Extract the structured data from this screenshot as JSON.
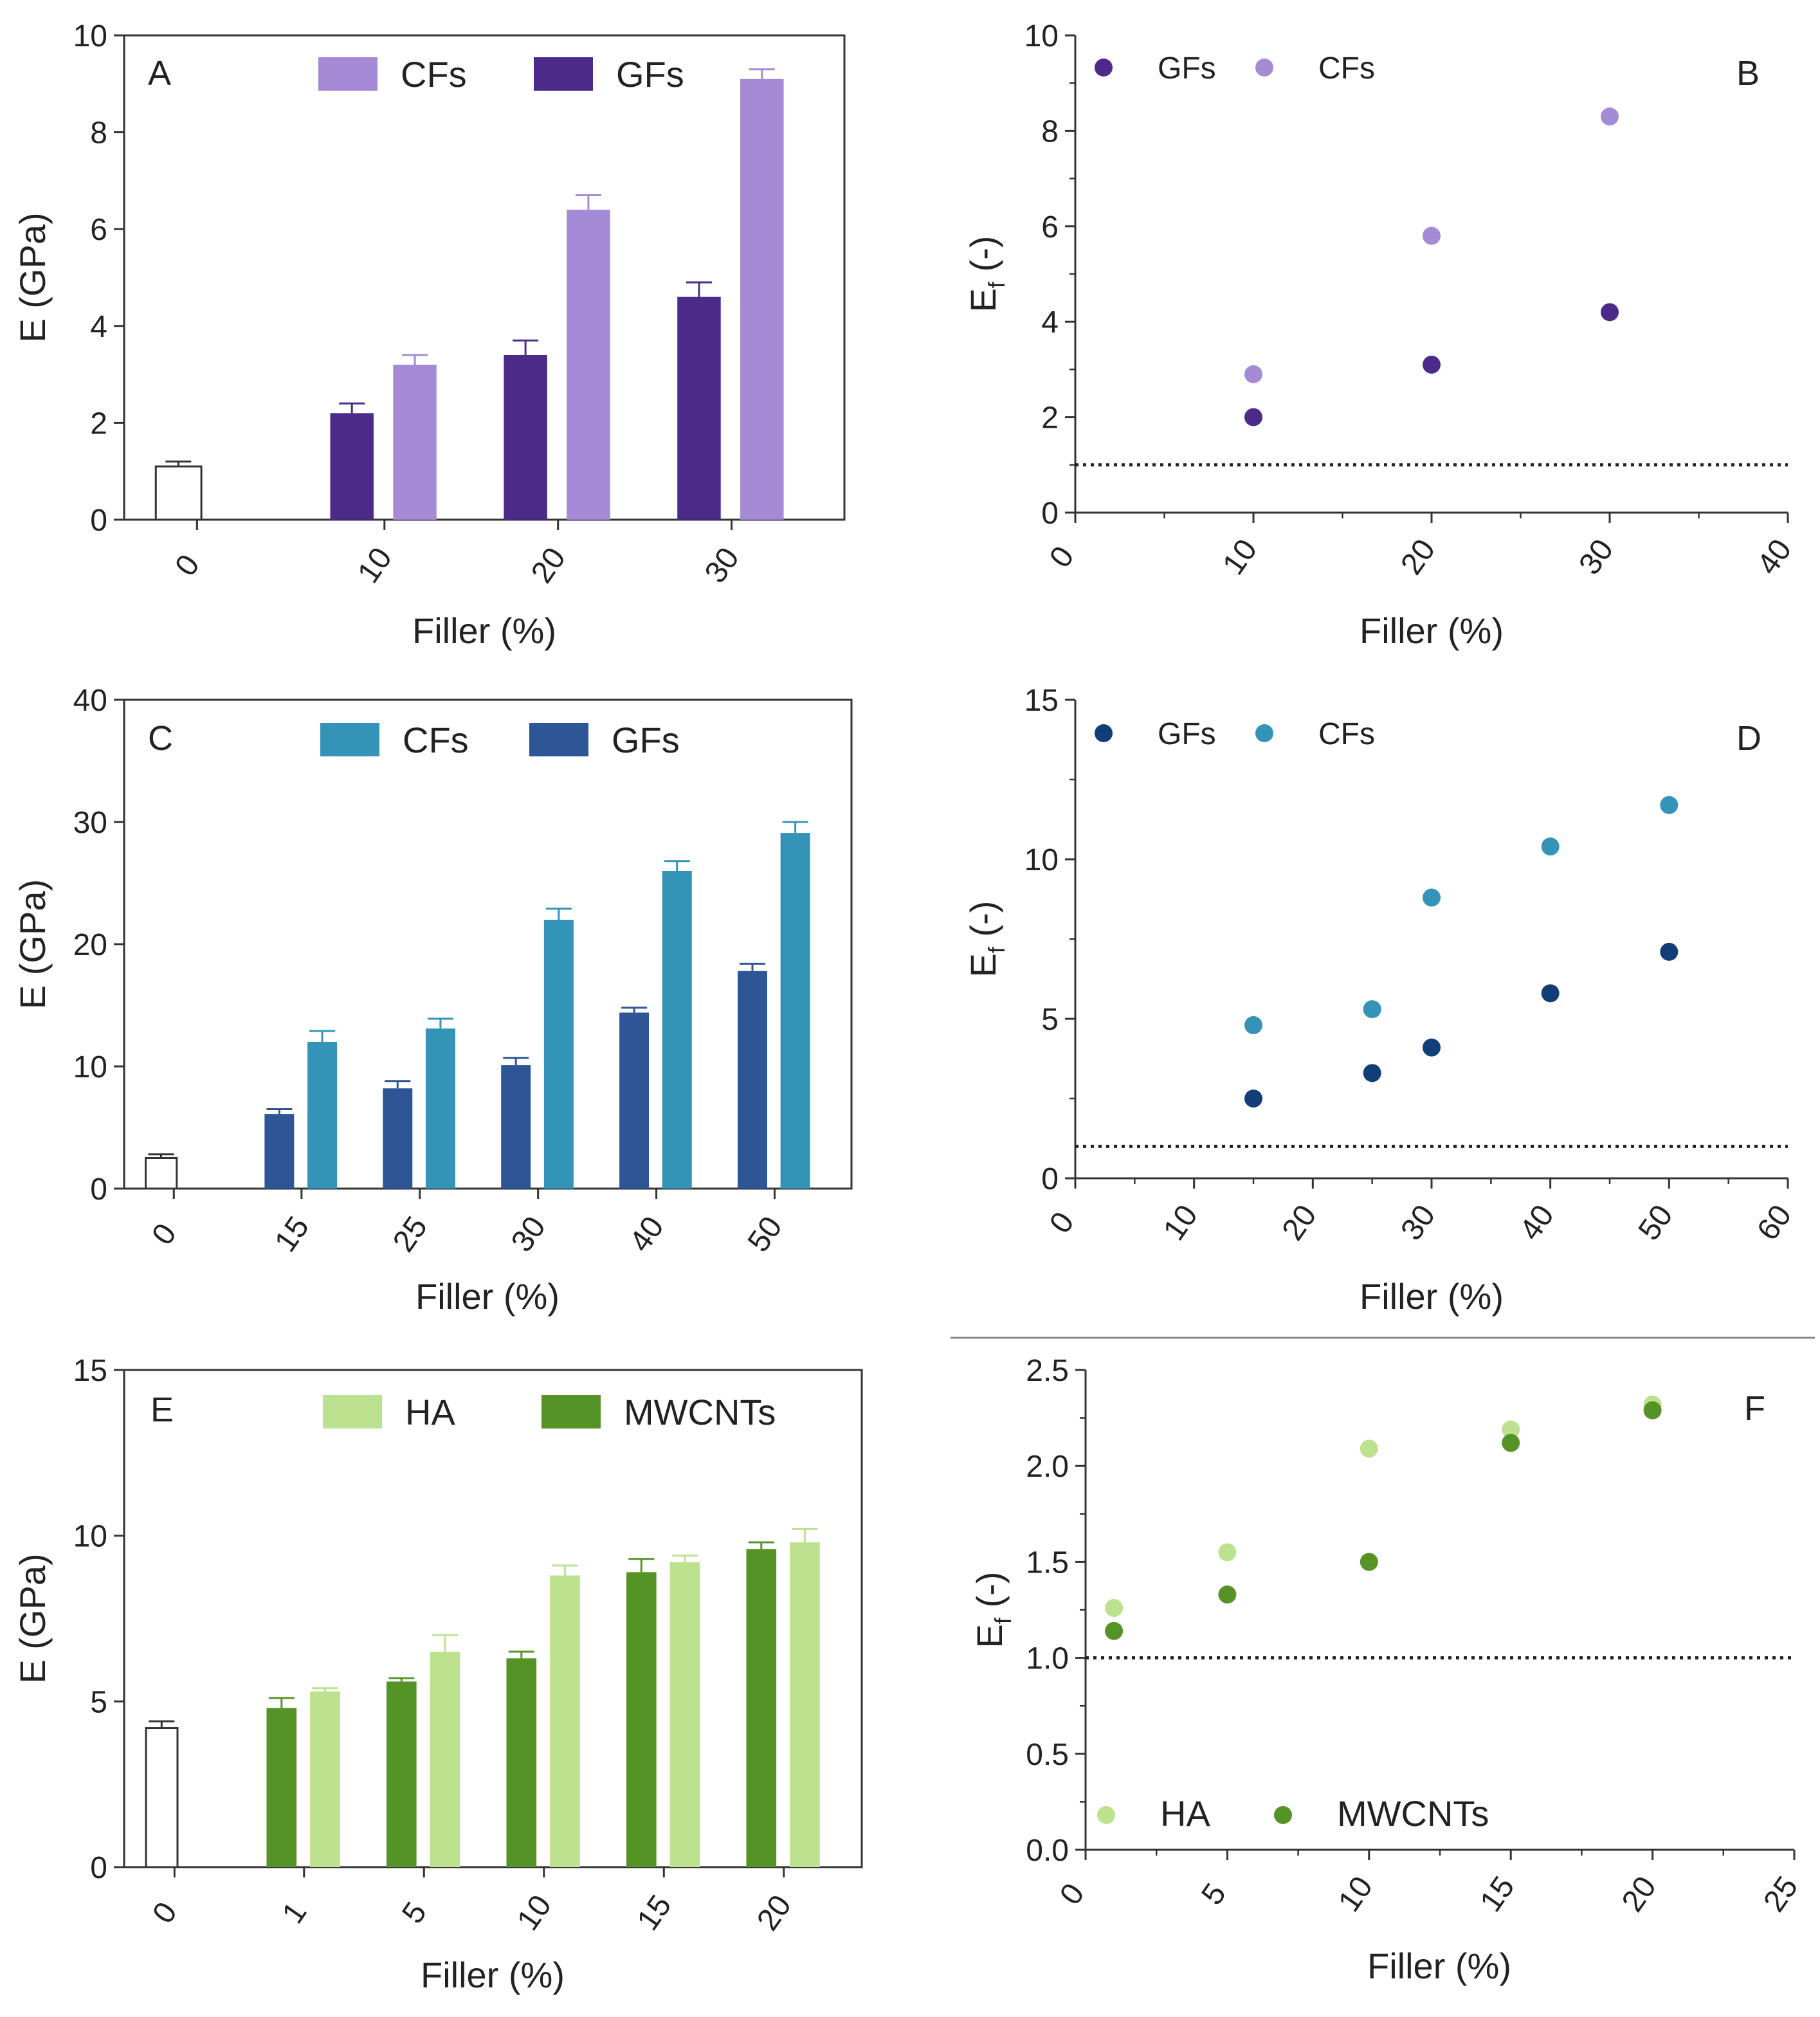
{
  "chart_data": [
    {
      "type": "bar",
      "panel": "A",
      "ylabel": "E (GPa)",
      "xlabel": "Filler (%)",
      "ylim": [
        0,
        10
      ],
      "yticks": [
        "0",
        "2",
        "4",
        "6",
        "8",
        "10"
      ],
      "categories": [
        "0",
        "10",
        "20",
        "30"
      ],
      "control": {
        "value": 1.1,
        "error": 0.1
      },
      "series": [
        {
          "name": "GFs",
          "color": "#4b2a8a",
          "values": [
            null,
            2.2,
            3.4,
            4.6
          ],
          "errors": [
            null,
            0.2,
            0.3,
            0.3
          ]
        },
        {
          "name": "CFs",
          "color": "#a58bd6",
          "values": [
            null,
            3.2,
            6.4,
            9.1
          ],
          "errors": [
            null,
            0.2,
            0.3,
            0.2
          ]
        }
      ],
      "legend": [
        "CFs",
        "GFs"
      ]
    },
    {
      "type": "scatter",
      "panel": "B",
      "ylabel_main": "E",
      "ylabel_sub": "f",
      "ylabel_rest": " (-)",
      "xlabel": "Filler (%)",
      "xlim": [
        0,
        40
      ],
      "ylim": [
        0,
        10
      ],
      "xticks": [
        "0",
        "10",
        "20",
        "30",
        "40"
      ],
      "yticks": [
        "0",
        "2",
        "4",
        "6",
        "8",
        "10"
      ],
      "reference_line": 1,
      "series": [
        {
          "name": "GFs",
          "color": "#4b2a8a",
          "x": [
            10,
            20,
            30
          ],
          "y": [
            2.0,
            3.1,
            4.2
          ]
        },
        {
          "name": "CFs",
          "color": "#a58bd6",
          "x": [
            10,
            20,
            30
          ],
          "y": [
            2.9,
            5.8,
            8.3
          ]
        }
      ],
      "legend": [
        "GFs",
        "CFs"
      ]
    },
    {
      "type": "bar",
      "panel": "C",
      "ylabel": "E (GPa)",
      "xlabel": "Filler (%)",
      "ylim": [
        0,
        40
      ],
      "yticks": [
        "0",
        "10",
        "20",
        "30",
        "40"
      ],
      "categories": [
        "0",
        "15",
        "25",
        "30",
        "40",
        "50"
      ],
      "control": {
        "value": 2.5,
        "error": 0.3
      },
      "series": [
        {
          "name": "GFs",
          "color": "#2e5596",
          "values": [
            null,
            6.1,
            8.2,
            10.1,
            14.4,
            17.8
          ],
          "errors": [
            null,
            0.4,
            0.6,
            0.6,
            0.4,
            0.6
          ]
        },
        {
          "name": "CFs",
          "color": "#3494b8",
          "values": [
            null,
            12.0,
            13.1,
            22.0,
            26.0,
            29.1
          ],
          "errors": [
            null,
            0.9,
            0.8,
            0.9,
            0.8,
            0.9
          ]
        }
      ],
      "legend": [
        "CFs",
        "GFs"
      ]
    },
    {
      "type": "scatter",
      "panel": "D",
      "ylabel_main": "E",
      "ylabel_sub": "f",
      "ylabel_rest": " (-)",
      "xlabel": "Filler (%)",
      "xlim": [
        0,
        60
      ],
      "ylim": [
        0,
        15
      ],
      "xticks": [
        "0",
        "10",
        "20",
        "30",
        "40",
        "50",
        "60"
      ],
      "yticks": [
        "0",
        "5",
        "10",
        "15"
      ],
      "reference_line": 1,
      "series": [
        {
          "name": "GFs",
          "color": "#123e78",
          "x": [
            15,
            25,
            30,
            40,
            50
          ],
          "y": [
            2.5,
            3.3,
            4.1,
            5.8,
            7.1
          ]
        },
        {
          "name": "CFs",
          "color": "#3494b8",
          "x": [
            15,
            25,
            30,
            40,
            50
          ],
          "y": [
            4.8,
            5.3,
            8.8,
            10.4,
            11.7
          ]
        }
      ],
      "legend": [
        "GFs",
        "CFs"
      ]
    },
    {
      "type": "bar",
      "panel": "E",
      "ylabel": "E (GPa)",
      "xlabel": "Filler (%)",
      "ylim": [
        0,
        15
      ],
      "yticks": [
        "0",
        "5",
        "10",
        "15"
      ],
      "categories": [
        "0",
        "1",
        "5",
        "10",
        "15",
        "20"
      ],
      "control": {
        "value": 4.2,
        "error": 0.2
      },
      "series": [
        {
          "name": "MWCNTs",
          "color": "#559327",
          "values": [
            null,
            4.8,
            5.6,
            6.3,
            8.9,
            9.6
          ],
          "errors": [
            null,
            0.3,
            0.1,
            0.2,
            0.4,
            0.2
          ]
        },
        {
          "name": "HA",
          "color": "#bde28f",
          "values": [
            null,
            5.3,
            6.5,
            8.8,
            9.2,
            9.8
          ],
          "errors": [
            null,
            0.1,
            0.5,
            0.3,
            0.2,
            0.4
          ]
        }
      ],
      "legend": [
        "HA",
        "MWCNTs"
      ]
    },
    {
      "type": "scatter",
      "panel": "F",
      "ylabel_main": "E",
      "ylabel_sub": "f",
      "ylabel_rest": " (-)",
      "xlabel": "Filler (%)",
      "xlim": [
        0,
        25
      ],
      "ylim": [
        0,
        2.5
      ],
      "xticks": [
        "0",
        "5",
        "10",
        "15",
        "20",
        "25"
      ],
      "yticks": [
        "0.0",
        "0.5",
        "1.0",
        "1.5",
        "2.0",
        "2.5"
      ],
      "reference_line": 1,
      "series": [
        {
          "name": "HA",
          "color": "#bde28f",
          "x": [
            1,
            5,
            10,
            15,
            20
          ],
          "y": [
            1.26,
            1.55,
            2.09,
            2.19,
            2.32
          ]
        },
        {
          "name": "MWCNTs",
          "color": "#559327",
          "x": [
            1,
            5,
            10,
            15,
            20
          ],
          "y": [
            1.14,
            1.33,
            1.5,
            2.12,
            2.29
          ]
        }
      ],
      "legend": [
        "HA",
        "MWCNTs"
      ]
    }
  ]
}
